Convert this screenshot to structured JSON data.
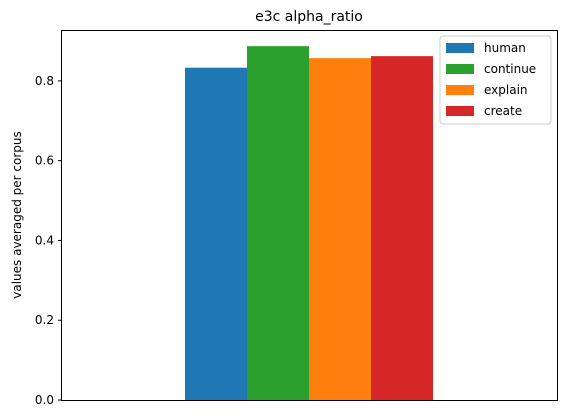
{
  "chart_data": {
    "type": "bar",
    "title": "e3c alpha_ratio",
    "xlabel": "",
    "ylabel": "values averaged per corpus",
    "ylim": [
      0,
      0.925
    ],
    "yticks": [
      0.0,
      0.2,
      0.4,
      0.6,
      0.8
    ],
    "ytick_labels": [
      "0.0",
      "0.2",
      "0.4",
      "0.6",
      "0.8"
    ],
    "grid": false,
    "legend_position": "top-right",
    "series": [
      {
        "name": "human",
        "value": 0.833,
        "color": "#1f77b4"
      },
      {
        "name": "continue",
        "value": 0.887,
        "color": "#2ca02c"
      },
      {
        "name": "explain",
        "value": 0.857,
        "color": "#ff7f0e"
      },
      {
        "name": "create",
        "value": 0.862,
        "color": "#d62728"
      }
    ]
  }
}
